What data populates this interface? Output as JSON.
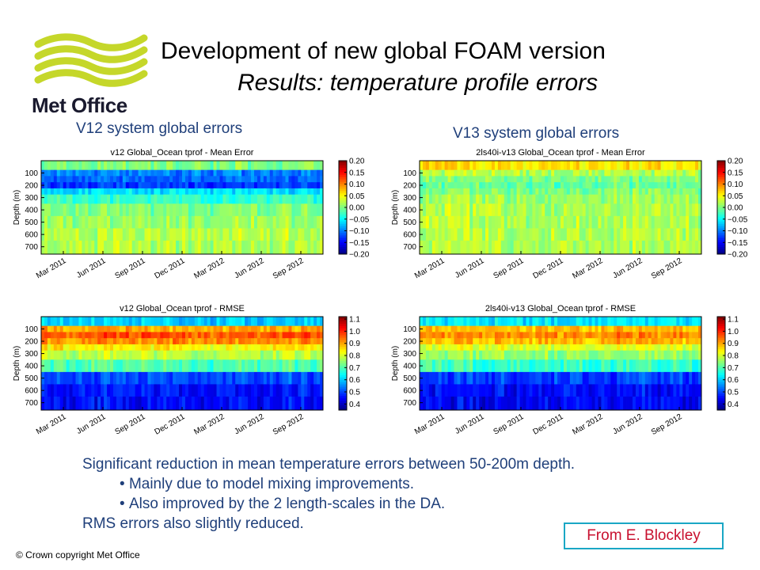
{
  "logo": {
    "name": "Met Office",
    "color": "#c5d72a"
  },
  "title": "Development of new global FOAM version",
  "subtitle": "Results: temperature profile errors",
  "system_labels": [
    "V12 system global errors",
    "V13 system global errors"
  ],
  "summary": {
    "line1": "Significant reduction in mean temperature errors between 50-200m depth.",
    "bullet1": "Mainly due to model mixing improvements.",
    "bullet2": "Also improved by the 2 length-scales in the DA.",
    "line2": "RMS errors also slightly reduced."
  },
  "credit": "From E. Blockley",
  "copyright": "© Crown copyright   Met Office",
  "chart_data": [
    {
      "type": "heatmap",
      "title": "v12 Global_Ocean tprof - Mean Error",
      "ylabel": "Depth (m)",
      "y_ticks": [
        "100",
        "200",
        "300",
        "400",
        "500",
        "600",
        "700"
      ],
      "x_ticks": [
        "Mar 2011",
        "Jun 2011",
        "Sep 2011",
        "Dec 2011",
        "Mar 2012",
        "Jun 2012",
        "Sep 2012"
      ],
      "colorbar_ticks": [
        "0.20",
        "0.15",
        "0.10",
        "0.05",
        "0.00",
        "−0.05",
        "−0.10",
        "−0.15",
        "−0.20"
      ],
      "clim": [
        -0.2,
        0.2
      ],
      "depth_levels": [
        50,
        100,
        150,
        200,
        250,
        300,
        400,
        500,
        600,
        700
      ],
      "profile": [
        0.0,
        -0.1,
        -0.11,
        -0.13,
        -0.06,
        -0.03,
        0.0,
        0.01,
        0.02,
        0.02
      ]
    },
    {
      "type": "heatmap",
      "title": "2ls40i-v13 Global_Ocean tprof - Mean Error",
      "ylabel": "Depth (m)",
      "y_ticks": [
        "100",
        "200",
        "300",
        "400",
        "500",
        "600",
        "700"
      ],
      "x_ticks": [
        "Mar 2011",
        "Jun 2011",
        "Sep 2011",
        "Dec 2011",
        "Mar 2012",
        "Jun 2012",
        "Sep 2012"
      ],
      "colorbar_ticks": [
        "0.20",
        "0.15",
        "0.10",
        "0.05",
        "0.00",
        "−0.05",
        "−0.10",
        "−0.15",
        "−0.20"
      ],
      "clim": [
        -0.2,
        0.2
      ],
      "depth_levels": [
        50,
        100,
        150,
        200,
        250,
        300,
        400,
        500,
        600,
        700
      ],
      "profile": [
        0.06,
        0.02,
        0.0,
        -0.01,
        0.0,
        0.01,
        0.02,
        0.02,
        0.02,
        0.02
      ]
    },
    {
      "type": "heatmap",
      "title": "v12 Global_Ocean tprof - RMSE",
      "ylabel": "Depth (m)",
      "y_ticks": [
        "100",
        "200",
        "300",
        "400",
        "500",
        "600",
        "700"
      ],
      "x_ticks": [
        "Mar 2011",
        "Jun 2011",
        "Sep 2011",
        "Dec 2011",
        "Mar 2012",
        "Jun 2012",
        "Sep 2012"
      ],
      "colorbar_ticks": [
        "1.1",
        "1.0",
        "0.9",
        "0.8",
        "0.7",
        "0.6",
        "0.5",
        "0.4"
      ],
      "clim": [
        0.35,
        1.12
      ],
      "depth_levels": [
        50,
        100,
        150,
        200,
        250,
        300,
        400,
        500,
        600,
        700
      ],
      "profile": [
        0.6,
        0.9,
        0.96,
        0.92,
        0.84,
        0.78,
        0.7,
        0.5,
        0.46,
        0.45
      ]
    },
    {
      "type": "heatmap",
      "title": "2ls40i-v13 Global_Ocean tprof - RMSE",
      "ylabel": "Depth (m)",
      "y_ticks": [
        "100",
        "200",
        "300",
        "400",
        "500",
        "600",
        "700"
      ],
      "x_ticks": [
        "Mar 2011",
        "Jun 2011",
        "Sep 2011",
        "Dec 2011",
        "Mar 2012",
        "Jun 2012",
        "Sep 2012"
      ],
      "colorbar_ticks": [
        "1.1",
        "1.0",
        "0.9",
        "0.8",
        "0.7",
        "0.6",
        "0.5",
        "0.4"
      ],
      "clim": [
        0.35,
        1.12
      ],
      "depth_levels": [
        50,
        100,
        150,
        200,
        250,
        300,
        400,
        500,
        600,
        700
      ],
      "profile": [
        0.62,
        0.88,
        0.92,
        0.88,
        0.8,
        0.75,
        0.68,
        0.49,
        0.45,
        0.44
      ]
    }
  ]
}
